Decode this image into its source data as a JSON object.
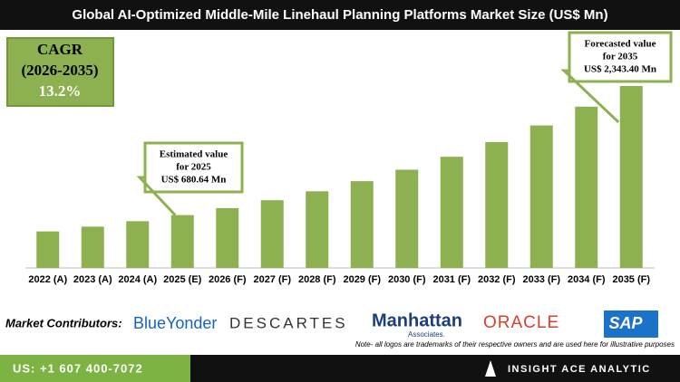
{
  "chart_data": {
    "type": "bar",
    "title": "Global AI-Optimized Middle-Mile Linehaul Planning Platforms Market Size (US$ Mn)",
    "categories": [
      "2022 (A)",
      "2023 (A)",
      "2024 (A)",
      "2025 (E)",
      "2026 (F)",
      "2027 (F)",
      "2028 (F)",
      "2029 (F)",
      "2030 (F)",
      "2031 (F)",
      "2032 (F)",
      "2033 (F)",
      "2034 (F)",
      "2035 (F)"
    ],
    "values": [
      470,
      532,
      602,
      680.64,
      770.5,
      872.2,
      987.3,
      1117.6,
      1265.1,
      1432.1,
      1621.1,
      1835.1,
      2077.3,
      2343.4
    ],
    "color": "#8db050",
    "annotations": [
      [
        "Estimated value",
        "for 2025",
        "US$ 680.64 Mn"
      ],
      [
        "Forecasted value",
        "for 2035",
        "US$ 2,343.40 Mn"
      ]
    ]
  },
  "cagr": {
    "label": "CAGR",
    "period": "(2026-2035)",
    "value": "13.2%"
  },
  "contributors": {
    "label": "Market Contributors:",
    "logos": [
      "BlueYonder",
      "DESCARTES",
      "Manhattan",
      "Associates.",
      "ORACLE",
      "SAP"
    ],
    "note": "Note- all logos are trademarks of their respective owners and are used here for illustrative purposes"
  },
  "footer": {
    "phone": "US: +1 607 400-7072",
    "brand": "INSIGHT ACE ANALYTIC"
  }
}
